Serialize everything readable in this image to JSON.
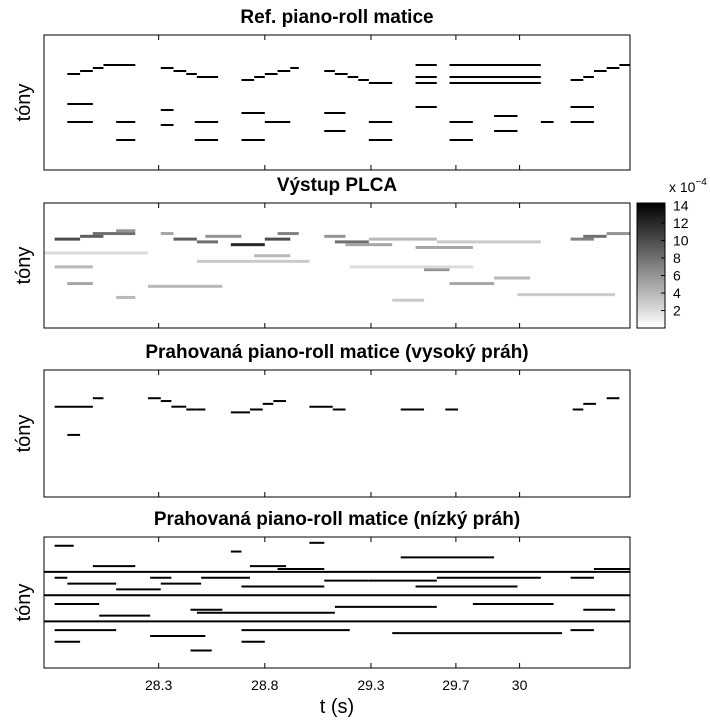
{
  "chart_data": [
    {
      "type": "piano-roll",
      "title": "Ref. piano-roll matice",
      "ylabel": "tóny",
      "xlim": [
        27.76,
        30.52
      ],
      "ylim": [
        0,
        45
      ],
      "color": "#000000",
      "notes": [
        [
          27.87,
          27.93,
          32
        ],
        [
          27.93,
          27.99,
          33
        ],
        [
          27.99,
          28.04,
          34
        ],
        [
          28.04,
          28.19,
          35
        ],
        [
          27.87,
          27.99,
          22
        ],
        [
          27.87,
          27.99,
          16
        ],
        [
          28.1,
          28.19,
          16
        ],
        [
          28.1,
          28.19,
          10
        ],
        [
          28.31,
          28.37,
          34
        ],
        [
          28.37,
          28.43,
          33
        ],
        [
          28.43,
          28.48,
          32
        ],
        [
          28.48,
          28.58,
          31
        ],
        [
          28.31,
          28.37,
          20
        ],
        [
          28.31,
          28.37,
          15
        ],
        [
          28.47,
          28.58,
          16
        ],
        [
          28.47,
          28.58,
          10
        ],
        [
          28.69,
          28.75,
          30
        ],
        [
          28.75,
          28.8,
          31
        ],
        [
          28.8,
          28.86,
          32
        ],
        [
          28.86,
          28.92,
          33
        ],
        [
          28.92,
          28.96,
          34
        ],
        [
          28.69,
          28.8,
          19
        ],
        [
          28.69,
          28.8,
          10
        ],
        [
          28.8,
          28.92,
          16
        ],
        [
          29.08,
          29.13,
          33
        ],
        [
          29.13,
          29.19,
          32
        ],
        [
          29.19,
          29.24,
          31
        ],
        [
          29.24,
          29.29,
          30
        ],
        [
          29.29,
          29.4,
          29
        ],
        [
          29.08,
          29.18,
          19
        ],
        [
          29.08,
          29.18,
          13
        ],
        [
          29.29,
          29.4,
          16
        ],
        [
          29.29,
          29.4,
          10
        ],
        [
          29.51,
          29.61,
          35
        ],
        [
          29.51,
          29.61,
          31
        ],
        [
          29.51,
          29.61,
          29
        ],
        [
          29.51,
          29.61,
          21
        ],
        [
          29.67,
          30.1,
          35
        ],
        [
          29.67,
          30.1,
          31
        ],
        [
          29.67,
          30.1,
          29
        ],
        [
          29.67,
          29.78,
          16
        ],
        [
          29.67,
          29.78,
          10
        ],
        [
          29.88,
          29.99,
          18
        ],
        [
          29.88,
          29.99,
          13
        ],
        [
          30.1,
          30.16,
          16
        ],
        [
          30.24,
          30.3,
          30
        ],
        [
          30.3,
          30.35,
          31
        ],
        [
          30.35,
          30.41,
          33
        ],
        [
          30.41,
          30.47,
          34
        ],
        [
          30.47,
          30.52,
          35
        ],
        [
          30.24,
          30.35,
          21
        ],
        [
          30.24,
          30.35,
          16
        ]
      ]
    },
    {
      "type": "heatmap",
      "title": "Výstup PLCA",
      "ylabel": "tóny",
      "xlim": [
        27.76,
        30.52
      ],
      "ylim": [
        0,
        45
      ],
      "clim": [
        0,
        14.3
      ],
      "cticks": [
        2,
        4,
        6,
        8,
        10,
        12,
        14
      ],
      "colorbar_base": "x 10",
      "colorbar_exponent": "−4",
      "cells": [
        [
          27.81,
          27.93,
          32,
          10
        ],
        [
          27.93,
          28.04,
          33,
          9
        ],
        [
          27.99,
          28.19,
          34,
          8
        ],
        [
          28.1,
          28.19,
          35,
          6
        ],
        [
          27.81,
          27.99,
          22,
          4
        ],
        [
          27.87,
          27.99,
          16,
          5
        ],
        [
          28.1,
          28.19,
          11,
          4
        ],
        [
          28.31,
          28.37,
          34,
          5
        ],
        [
          28.37,
          28.48,
          32,
          9
        ],
        [
          28.48,
          28.58,
          31,
          8
        ],
        [
          28.52,
          28.69,
          33,
          6
        ],
        [
          28.64,
          28.8,
          30,
          12
        ],
        [
          28.8,
          28.92,
          32,
          10
        ],
        [
          28.86,
          28.96,
          34,
          7
        ],
        [
          28.75,
          28.92,
          26,
          4
        ],
        [
          29.08,
          29.18,
          33,
          6
        ],
        [
          29.13,
          29.29,
          31,
          8
        ],
        [
          29.18,
          29.4,
          30,
          5
        ],
        [
          29.29,
          29.61,
          32,
          4
        ],
        [
          29.51,
          29.78,
          29,
          5
        ],
        [
          29.61,
          30.1,
          31,
          3
        ],
        [
          29.55,
          29.67,
          21,
          6
        ],
        [
          29.67,
          29.88,
          16,
          5
        ],
        [
          29.88,
          30.05,
          18,
          4
        ],
        [
          30.24,
          30.35,
          32,
          7
        ],
        [
          30.3,
          30.41,
          33,
          8
        ],
        [
          30.41,
          30.52,
          34,
          6
        ],
        [
          27.76,
          28.25,
          27,
          2
        ],
        [
          28.48,
          29.01,
          24,
          3
        ],
        [
          29.2,
          29.78,
          22,
          2
        ],
        [
          29.99,
          30.45,
          12,
          3
        ],
        [
          28.25,
          28.6,
          15,
          4
        ],
        [
          29.4,
          29.55,
          10,
          3
        ]
      ]
    },
    {
      "type": "piano-roll",
      "title": "Prahovaná piano-roll matice (vysoký práh)",
      "ylabel": "tóny",
      "xlim": [
        27.76,
        30.52
      ],
      "ylim": [
        0,
        45
      ],
      "color": "#000000",
      "notes": [
        [
          27.81,
          27.99,
          32
        ],
        [
          27.99,
          28.04,
          35
        ],
        [
          27.87,
          27.93,
          22
        ],
        [
          28.25,
          28.31,
          35
        ],
        [
          28.31,
          28.36,
          34
        ],
        [
          28.36,
          28.43,
          32
        ],
        [
          28.43,
          28.48,
          31
        ],
        [
          28.48,
          28.52,
          31
        ],
        [
          28.64,
          28.73,
          30
        ],
        [
          28.73,
          28.79,
          31
        ],
        [
          28.79,
          28.84,
          33
        ],
        [
          28.84,
          28.9,
          34
        ],
        [
          29.01,
          29.12,
          32
        ],
        [
          29.12,
          29.18,
          31
        ],
        [
          29.44,
          29.55,
          31
        ],
        [
          29.65,
          29.71,
          31
        ],
        [
          30.25,
          30.3,
          31
        ],
        [
          30.3,
          30.36,
          33
        ],
        [
          30.41,
          30.47,
          35
        ]
      ]
    },
    {
      "type": "piano-roll",
      "title": "Prahovaná piano-roll matice (nízký práh)",
      "ylabel": "tóny",
      "xlabel": "t (s)",
      "xlim": [
        27.76,
        30.52
      ],
      "ylim": [
        0,
        45
      ],
      "color": "#000000",
      "xticks": [
        28.3,
        28.8,
        29.3,
        29.7,
        30
      ],
      "notes": [
        [
          27.81,
          27.9,
          42
        ],
        [
          27.76,
          30.52,
          33
        ],
        [
          27.76,
          30.52,
          25
        ],
        [
          27.76,
          30.52,
          16
        ],
        [
          27.81,
          27.87,
          31
        ],
        [
          27.87,
          28.1,
          29
        ],
        [
          27.99,
          28.19,
          35
        ],
        [
          28.1,
          28.31,
          27
        ],
        [
          28.26,
          28.36,
          31
        ],
        [
          28.31,
          28.5,
          29
        ],
        [
          28.5,
          28.73,
          31
        ],
        [
          28.64,
          28.69,
          40
        ],
        [
          28.69,
          29.08,
          28
        ],
        [
          28.73,
          28.9,
          35
        ],
        [
          28.86,
          29.08,
          34
        ],
        [
          29.01,
          29.08,
          43
        ],
        [
          29.08,
          29.29,
          30
        ],
        [
          29.29,
          29.61,
          30
        ],
        [
          29.44,
          29.88,
          38
        ],
        [
          29.51,
          29.99,
          28
        ],
        [
          29.61,
          30.1,
          31
        ],
        [
          30.24,
          30.35,
          31
        ],
        [
          30.35,
          30.52,
          34
        ],
        [
          27.81,
          28.02,
          22
        ],
        [
          28.02,
          28.26,
          18
        ],
        [
          28.45,
          28.6,
          20
        ],
        [
          28.48,
          29.13,
          19
        ],
        [
          29.13,
          29.61,
          21
        ],
        [
          29.78,
          30.16,
          22
        ],
        [
          27.81,
          28.1,
          13
        ],
        [
          28.26,
          28.52,
          11
        ],
        [
          28.69,
          29.2,
          13
        ],
        [
          29.4,
          30.2,
          12
        ],
        [
          27.81,
          27.93,
          9
        ],
        [
          28.45,
          28.55,
          6
        ],
        [
          28.69,
          28.8,
          9
        ],
        [
          30.24,
          30.35,
          13
        ],
        [
          30.3,
          30.45,
          20
        ]
      ]
    }
  ]
}
